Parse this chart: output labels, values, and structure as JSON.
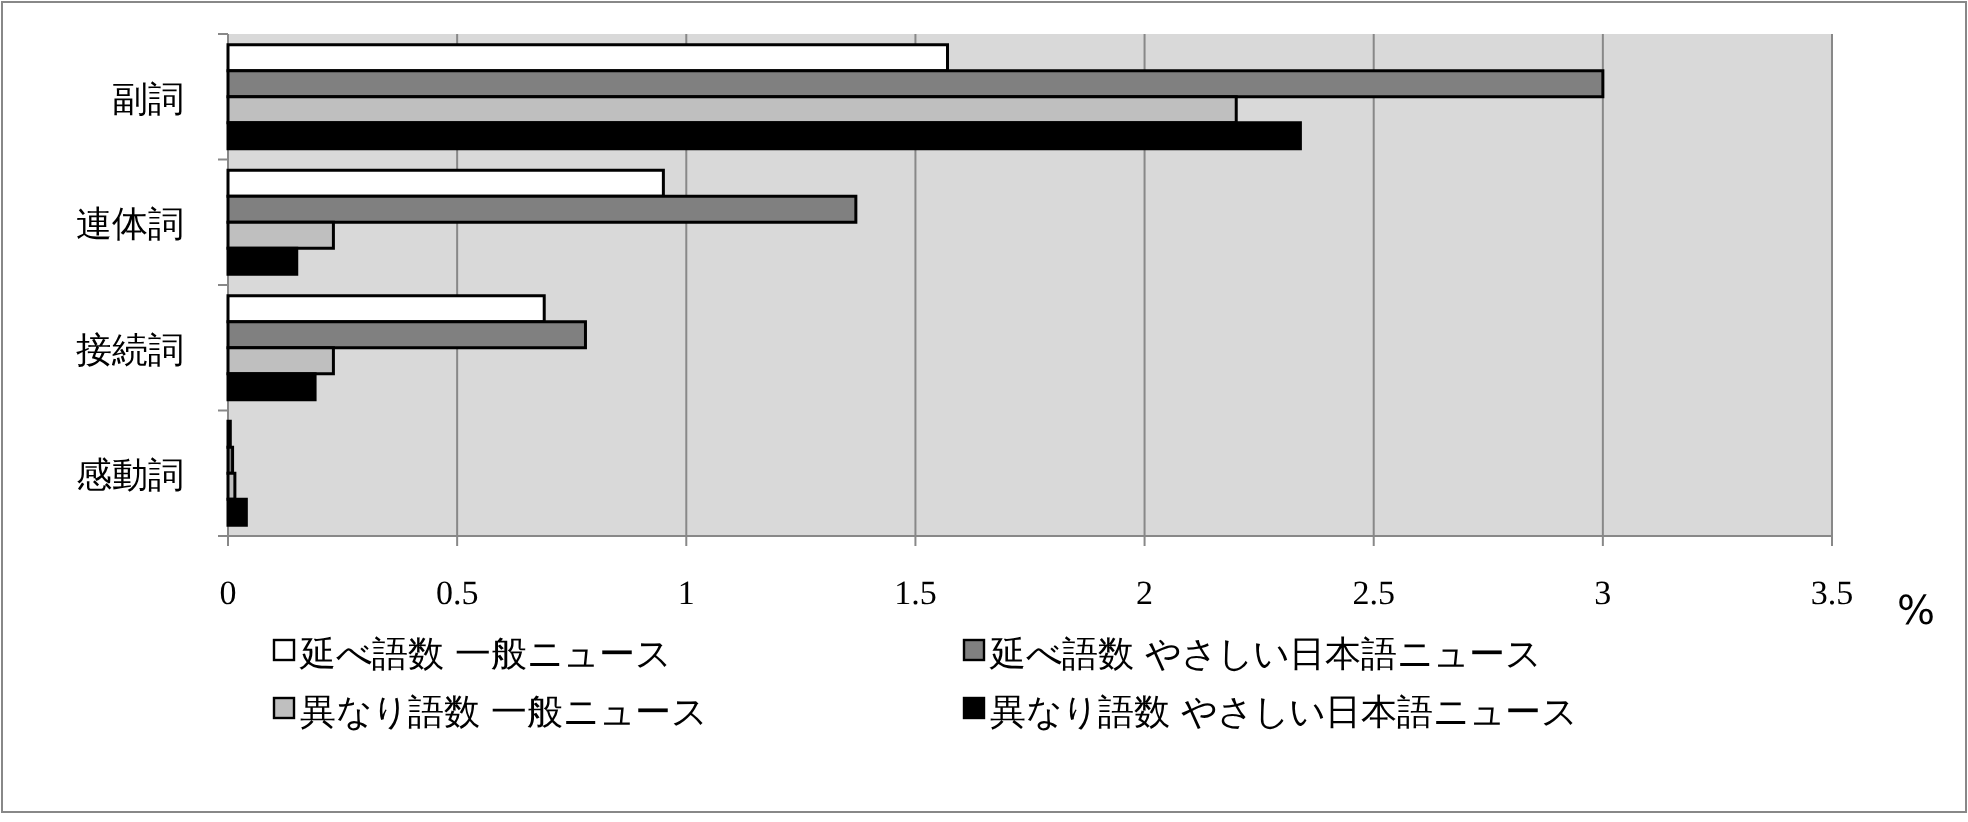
{
  "chart_data": {
    "type": "bar",
    "orientation": "horizontal",
    "xlabel": "%",
    "categories": [
      "副詞",
      "連体詞",
      "接続詞",
      "感動詞"
    ],
    "series": [
      {
        "name": "延べ語数 一般ニュース",
        "color": "#ffffff",
        "values": [
          1.57,
          0.95,
          0.69,
          0.005
        ]
      },
      {
        "name": "延べ語数 やさしい日本語ニュース",
        "color": "#808080",
        "values": [
          3.0,
          1.37,
          0.78,
          0.01
        ]
      },
      {
        "name": "異なり語数 一般ニュース",
        "color": "#bfbfbf",
        "values": [
          2.2,
          0.23,
          0.23,
          0.015
        ]
      },
      {
        "name": "異なり語数 やさしい日本語ニュース",
        "color": "#000000",
        "values": [
          2.34,
          0.15,
          0.19,
          0.04
        ]
      }
    ],
    "xlim": [
      0,
      3.5
    ],
    "xticks": [
      0,
      0.5,
      1,
      1.5,
      2,
      2.5,
      3,
      3.5
    ],
    "grid": "x",
    "legend": "bottom"
  }
}
